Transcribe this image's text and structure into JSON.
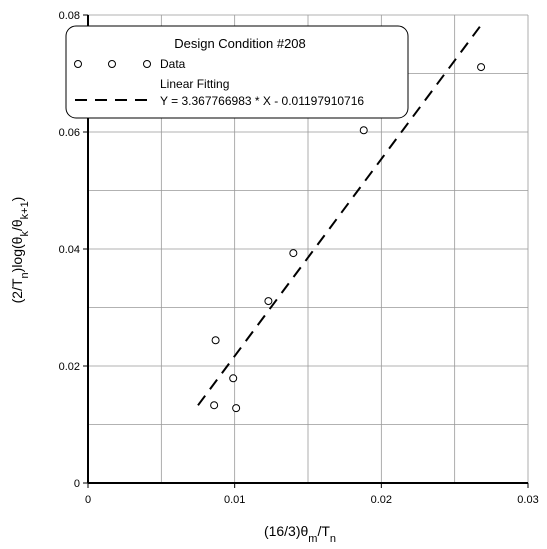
{
  "chart_data": {
    "type": "scatter",
    "legend_title": "Design Condition #208",
    "xlabel": [
      "(16/3)θ",
      "m",
      "/T",
      "n"
    ],
    "ylabel": [
      "(2/T",
      "n",
      ")log(θ",
      "k",
      "/θ",
      "k+1",
      ")"
    ],
    "series": [
      {
        "name": "Data",
        "type": "scatter",
        "color": "#000000",
        "x": [
          0.0087,
          0.0086,
          0.0099,
          0.0101,
          0.0123,
          0.014,
          0.0188,
          0.0268
        ],
        "values": [
          0.0244,
          0.0133,
          0.0179,
          0.0128,
          0.0311,
          0.0393,
          0.0603,
          0.0711
        ]
      },
      {
        "name": "Linear Fitting",
        "type": "line",
        "color": "#000000",
        "dashed": true,
        "equation": "Y = 3.367766983 * X - 0.01197910716",
        "x": [
          0.0075,
          0.0268
        ],
        "values": [
          0.01328,
          0.07828
        ]
      }
    ],
    "xlim": [
      0,
      0.03
    ],
    "ylim": [
      0,
      0.08
    ],
    "xticks": [
      0,
      0.01,
      0.02,
      0.03
    ],
    "yticks": [
      0,
      0.02,
      0.04,
      0.06,
      0.08
    ],
    "xgrid": [
      0.005,
      0.01,
      0.015,
      0.02,
      0.025,
      0.03
    ],
    "ygrid": [
      0.01,
      0.02,
      0.03,
      0.04,
      0.05,
      0.06,
      0.07,
      0.08
    ],
    "grid": true
  }
}
